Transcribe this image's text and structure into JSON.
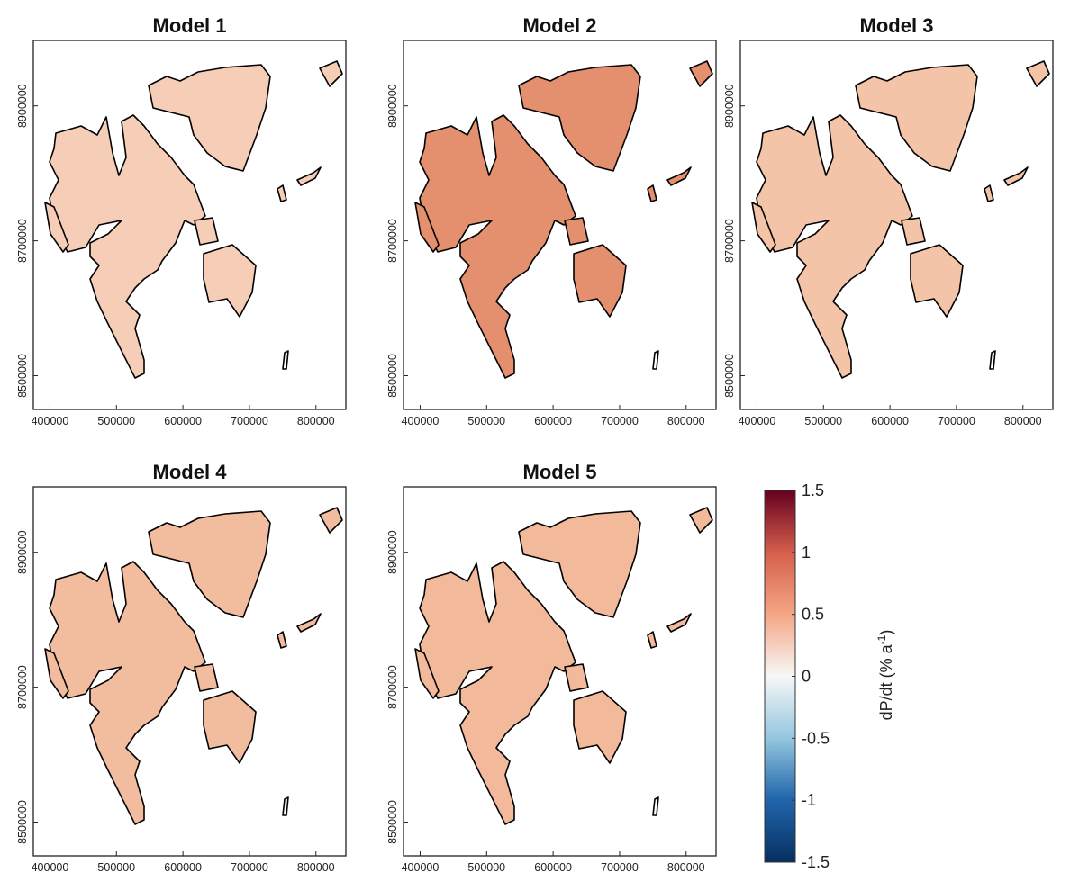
{
  "chart_data": {
    "type": "map",
    "panels": [
      {
        "title": "Model 1",
        "color": "#f6cdb6"
      },
      {
        "title": "Model 2",
        "color": "#e4906f"
      },
      {
        "title": "Model 3",
        "color": "#f4c4a9"
      },
      {
        "title": "Model 4",
        "color": "#f2bc9e"
      },
      {
        "title": "Model 5",
        "color": "#f2ba9b"
      }
    ],
    "xlim": [
      375000,
      845000
    ],
    "xticks": [
      400000,
      500000,
      600000,
      700000,
      800000
    ],
    "ylim": [
      8450000,
      8997000
    ],
    "yticks": [
      8500000,
      8700000,
      8900000
    ],
    "colorbar": {
      "label": "dP/dt (% a",
      "label_superscript": "-1",
      "label_end": ")",
      "lim": [
        -1.5,
        1.5
      ],
      "ticks": [
        -1.5,
        -1,
        -0.5,
        0,
        0.5,
        1,
        1.5
      ]
    }
  }
}
